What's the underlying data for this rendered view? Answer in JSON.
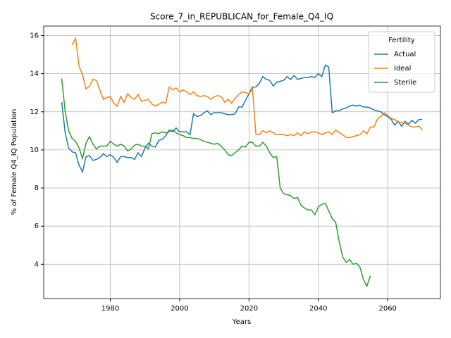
{
  "chart_data": {
    "type": "line",
    "title": "Score_7_in_REPUBLICAN_for_Female_Q4_IQ",
    "xlabel": "Years",
    "ylabel": "% of Female Q4_IQ Population",
    "legend_title": "Fertility",
    "legend": "upper right",
    "x": [
      1966,
      1967,
      1968,
      1969,
      1970,
      1971,
      1972,
      1973,
      1974,
      1975,
      1976,
      1977,
      1978,
      1979,
      1980,
      1981,
      1982,
      1983,
      1984,
      1985,
      1986,
      1987,
      1988,
      1989,
      1990,
      1991,
      1992,
      1993,
      1994,
      1995,
      1996,
      1997,
      1998,
      1999,
      2000,
      2001,
      2002,
      2003,
      2004,
      2005,
      2006,
      2007,
      2008,
      2009,
      2010,
      2011,
      2012,
      2013,
      2014,
      2015,
      2016,
      2017,
      2018,
      2019,
      2020,
      2021,
      2022,
      2023,
      2024,
      2025,
      2026,
      2027,
      2028,
      2029,
      2030,
      2031,
      2032,
      2033,
      2034,
      2035,
      2036,
      2037,
      2038,
      2039,
      2040,
      2041,
      2042,
      2043,
      2044,
      2045,
      2046,
      2047,
      2048,
      2049,
      2050,
      2051,
      2052,
      2053,
      2054,
      2055,
      2056,
      2057,
      2058,
      2059,
      2060,
      2061,
      2062,
      2063,
      2064,
      2065,
      2066,
      2067,
      2068,
      2069,
      2070
    ],
    "series": [
      {
        "name": "Actual",
        "color": "#1f77b4",
        "values": [
          12.5,
          10.9,
          10.1,
          9.9,
          9.85,
          9.2,
          8.85,
          9.65,
          9.7,
          9.45,
          9.5,
          9.6,
          9.8,
          9.65,
          9.75,
          9.6,
          9.35,
          9.65,
          9.65,
          9.6,
          9.6,
          9.5,
          9.85,
          9.65,
          10.1,
          10.35,
          10.2,
          10.15,
          10.5,
          10.55,
          10.75,
          11.05,
          10.95,
          11.15,
          10.95,
          10.95,
          10.95,
          10.8,
          11.9,
          11.75,
          11.8,
          11.95,
          12.05,
          11.85,
          11.95,
          11.95,
          11.95,
          11.9,
          11.85,
          11.85,
          11.9,
          12.25,
          12.25,
          12.6,
          12.95,
          13.3,
          13.3,
          13.5,
          13.85,
          13.7,
          13.65,
          13.35,
          13.55,
          13.6,
          13.65,
          13.85,
          13.7,
          13.9,
          13.7,
          13.75,
          13.8,
          13.8,
          13.85,
          13.8,
          14.0,
          13.85,
          14.45,
          14.35,
          11.95,
          12.05,
          12.05,
          12.15,
          12.2,
          12.3,
          12.35,
          12.3,
          12.35,
          12.25,
          12.25,
          12.2,
          12.1,
          12.05,
          12.0,
          11.85,
          11.75,
          11.6,
          11.3,
          11.5,
          11.25,
          11.5,
          11.35,
          11.55,
          11.4,
          11.6,
          11.6
        ]
      },
      {
        "name": "Ideal",
        "color": "#ff7f0e",
        "values": [
          null,
          null,
          null,
          15.5,
          15.85,
          14.4,
          13.95,
          13.2,
          13.35,
          13.7,
          13.65,
          13.15,
          12.65,
          12.75,
          12.8,
          12.45,
          12.3,
          12.8,
          12.5,
          12.95,
          12.75,
          12.65,
          12.9,
          12.55,
          12.6,
          12.65,
          12.4,
          12.3,
          12.4,
          12.5,
          12.45,
          13.3,
          13.15,
          13.25,
          13.05,
          13.15,
          13.05,
          12.9,
          13.05,
          12.85,
          12.8,
          12.85,
          12.8,
          12.65,
          12.8,
          12.85,
          12.8,
          12.5,
          12.65,
          12.45,
          12.7,
          12.9,
          13.05,
          13.0,
          12.95,
          13.2,
          10.8,
          10.8,
          11.0,
          10.9,
          11.0,
          10.9,
          10.8,
          10.8,
          10.8,
          10.75,
          10.8,
          10.75,
          10.9,
          10.75,
          10.95,
          10.85,
          10.95,
          10.95,
          10.9,
          10.8,
          10.9,
          10.95,
          10.8,
          11.05,
          10.9,
          10.8,
          10.65,
          10.65,
          10.7,
          10.75,
          10.8,
          11.0,
          10.85,
          11.2,
          11.2,
          11.6,
          11.75,
          11.95,
          11.8,
          11.65,
          11.6,
          11.45,
          11.45,
          11.4,
          11.3,
          11.2,
          11.2,
          11.25,
          11.05
        ]
      },
      {
        "name": "Sterile",
        "color": "#2ca02c",
        "values": [
          13.75,
          12.0,
          11.0,
          10.6,
          10.45,
          10.1,
          9.55,
          10.35,
          10.7,
          10.3,
          10.05,
          10.2,
          10.2,
          10.2,
          10.45,
          10.3,
          10.2,
          10.3,
          10.2,
          9.95,
          10.05,
          10.25,
          10.3,
          10.2,
          10.2,
          10.05,
          10.85,
          10.9,
          10.85,
          10.95,
          10.9,
          10.95,
          11.05,
          10.9,
          10.8,
          10.75,
          10.65,
          10.65,
          10.6,
          10.6,
          10.55,
          10.45,
          10.4,
          10.35,
          10.3,
          10.35,
          10.2,
          10.0,
          9.75,
          9.7,
          9.85,
          10.0,
          10.2,
          10.15,
          10.4,
          10.4,
          10.2,
          10.2,
          10.4,
          10.2,
          9.85,
          9.6,
          9.65,
          8.0,
          7.7,
          7.65,
          7.6,
          7.45,
          7.5,
          7.1,
          6.95,
          6.85,
          6.85,
          6.6,
          7.0,
          7.15,
          7.2,
          6.8,
          6.4,
          6.2,
          5.2,
          4.4,
          4.1,
          4.25,
          4.0,
          4.05,
          3.85,
          3.2,
          2.85,
          3.4,
          null,
          null,
          null,
          null,
          null,
          null,
          null,
          null,
          null,
          null,
          null,
          null,
          null,
          null,
          null
        ]
      }
    ],
    "xlim": [
      1960.8,
      2075.2
    ],
    "ylim": [
      2.2,
      16.5
    ],
    "xticks": [
      1980,
      2000,
      2020,
      2040,
      2060
    ],
    "yticks": [
      4,
      6,
      8,
      10,
      12,
      14,
      16
    ],
    "grid": true
  }
}
